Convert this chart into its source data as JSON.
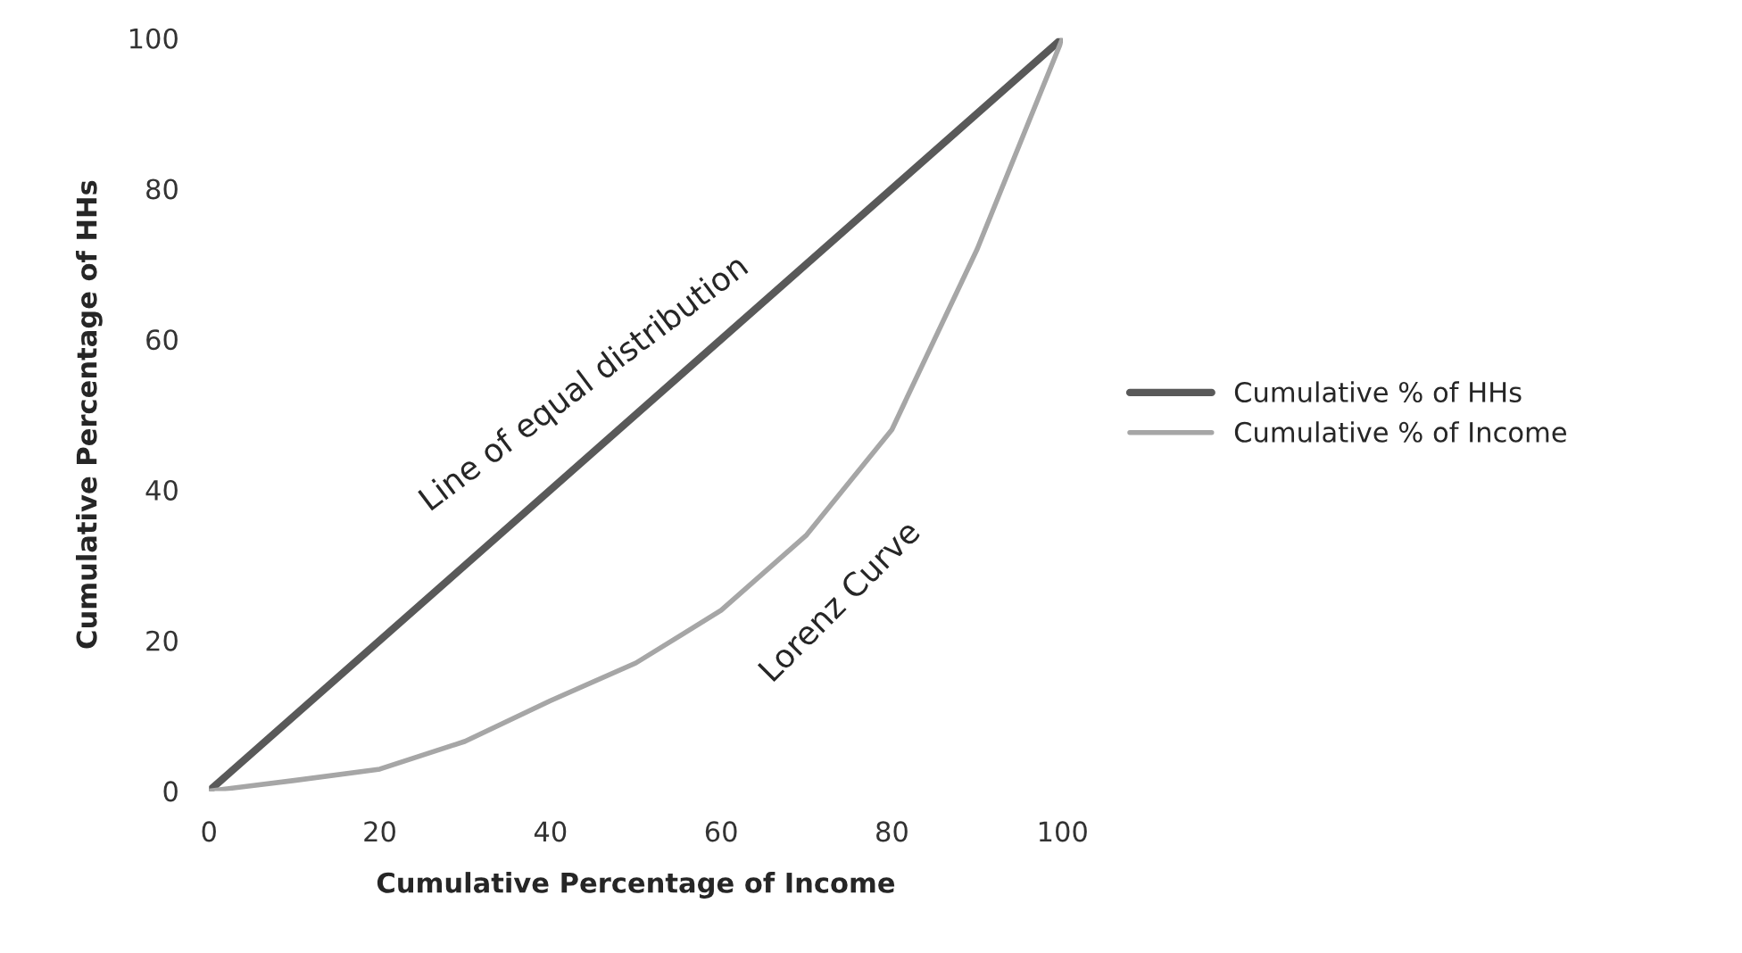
{
  "chart_data": {
    "type": "line",
    "xlabel": "Cumulative Percentage of Income",
    "ylabel": "Cumulative Percentage of HHs",
    "xlim": [
      0,
      100
    ],
    "ylim": [
      0,
      100
    ],
    "xticks": [
      0,
      20,
      40,
      60,
      80,
      100
    ],
    "yticks": [
      0,
      20,
      40,
      60,
      80,
      100
    ],
    "grid": false,
    "legend": "right",
    "marker": "none",
    "line_style": "solid",
    "series": [
      {
        "name": "Cumulative % of HHs",
        "color": "#595959",
        "x": [
          0,
          100
        ],
        "values": [
          0,
          100
        ]
      },
      {
        "name": "Cumulative % of Income",
        "color": "#a6a6a6",
        "x": [
          0,
          10,
          20,
          30,
          40,
          50,
          60,
          70,
          80,
          90,
          100
        ],
        "values": [
          0,
          1.4,
          2.9,
          6.6,
          12,
          17,
          24,
          34,
          48,
          72,
          100
        ]
      }
    ],
    "annotations": [
      "Line of equal distribution",
      "Lorenz Curve"
    ]
  }
}
